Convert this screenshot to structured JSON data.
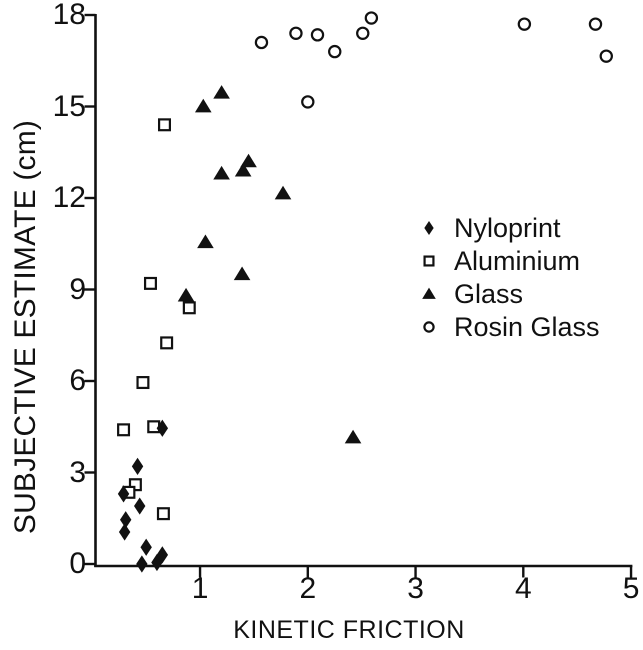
{
  "figure": {
    "background": "#ffffff",
    "ink_color": "#111111"
  },
  "chart_data": {
    "type": "scatter",
    "title": "",
    "xlabel": "KINETIC FRICTION",
    "ylabel": "SUBJECTIVE ESTIMATE (cm)",
    "xlim": [
      0,
      5
    ],
    "ylim": [
      0,
      18
    ],
    "x_ticks": [
      1,
      2,
      3,
      4,
      5
    ],
    "y_ticks": [
      0,
      3,
      6,
      9,
      12,
      15,
      18
    ],
    "grid": false,
    "legend_position": "center-right",
    "series": [
      {
        "name": "Nyloprint",
        "marker": "filled-diamond",
        "points": [
          [
            0.65,
            4.45
          ],
          [
            0.42,
            3.2
          ],
          [
            0.29,
            2.3
          ],
          [
            0.44,
            1.9
          ],
          [
            0.31,
            1.45
          ],
          [
            0.3,
            1.05
          ],
          [
            0.5,
            0.55
          ],
          [
            0.46,
            0.0
          ],
          [
            0.6,
            0.05
          ],
          [
            0.65,
            0.3
          ]
        ]
      },
      {
        "name": "Aluminium",
        "marker": "open-square",
        "points": [
          [
            0.67,
            14.4
          ],
          [
            0.54,
            9.2
          ],
          [
            0.9,
            8.4
          ],
          [
            0.69,
            7.25
          ],
          [
            0.47,
            5.95
          ],
          [
            0.29,
            4.4
          ],
          [
            0.57,
            4.5
          ],
          [
            0.4,
            2.6
          ],
          [
            0.34,
            2.35
          ],
          [
            0.66,
            1.65
          ]
        ]
      },
      {
        "name": "Glass",
        "marker": "filled-triangle",
        "points": [
          [
            1.03,
            15.0
          ],
          [
            1.2,
            15.45
          ],
          [
            1.45,
            13.2
          ],
          [
            1.4,
            12.9
          ],
          [
            1.2,
            12.8
          ],
          [
            1.77,
            12.15
          ],
          [
            1.05,
            10.55
          ],
          [
            1.39,
            9.5
          ],
          [
            0.87,
            8.8
          ],
          [
            2.42,
            4.15
          ]
        ]
      },
      {
        "name": "Rosin Glass",
        "marker": "open-circle",
        "points": [
          [
            1.57,
            17.1
          ],
          [
            1.89,
            17.4
          ],
          [
            2.09,
            17.35
          ],
          [
            2.25,
            16.8
          ],
          [
            2.51,
            17.4
          ],
          [
            2.59,
            17.9
          ],
          [
            2.0,
            15.15
          ],
          [
            4.01,
            17.7
          ],
          [
            4.67,
            17.7
          ],
          [
            4.77,
            16.65
          ]
        ]
      }
    ]
  }
}
